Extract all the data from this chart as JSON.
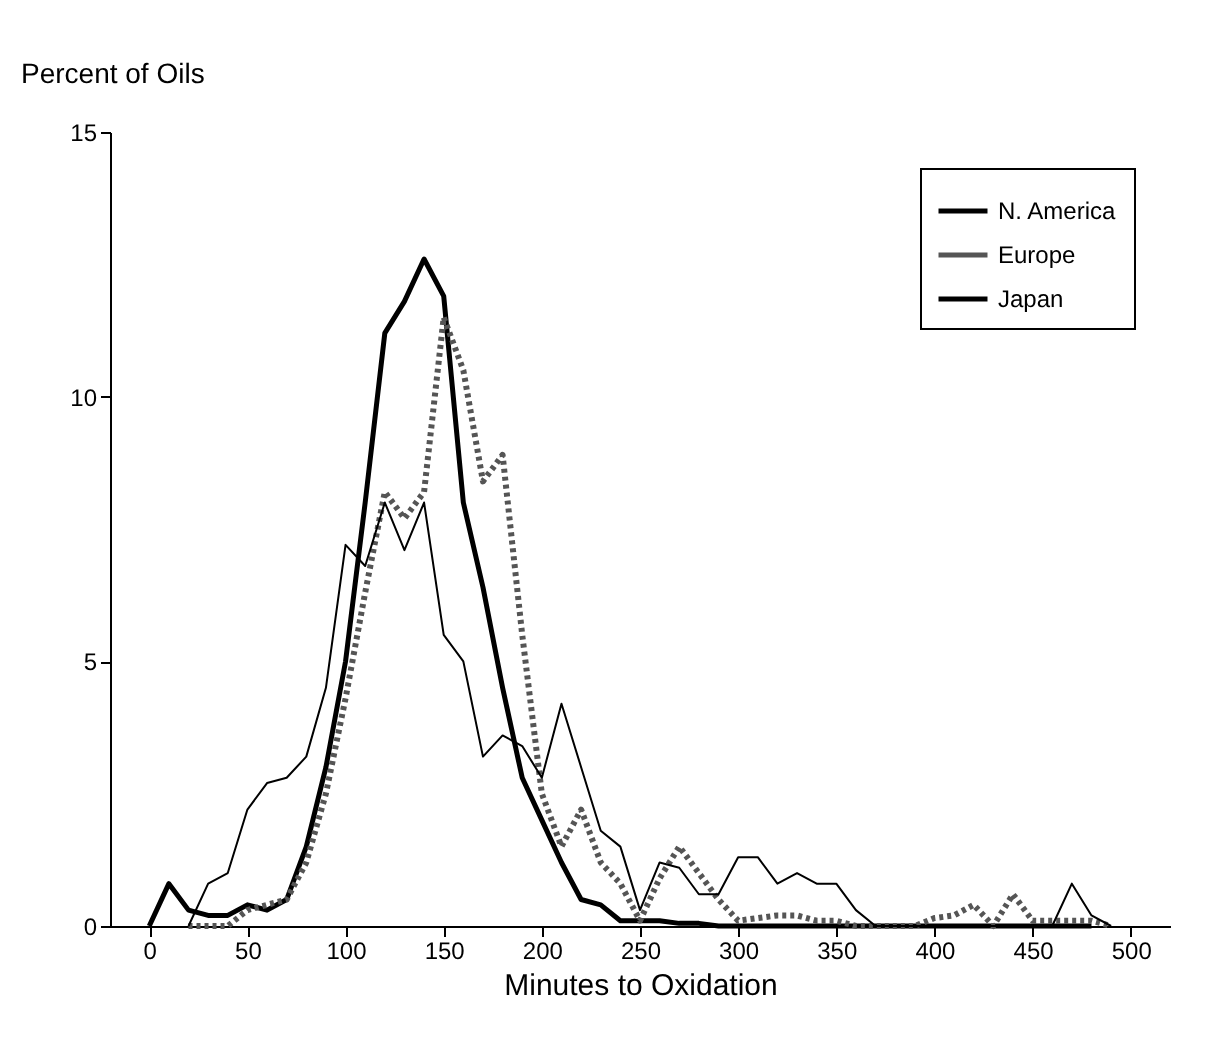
{
  "chart_data": {
    "type": "line",
    "ylabel": "Percent of Oils",
    "xlabel": "Minutes to Oxidation",
    "xlim": [
      -20,
      520
    ],
    "ylim": [
      0,
      15
    ],
    "xticks": [
      0,
      50,
      100,
      150,
      200,
      250,
      300,
      350,
      400,
      450,
      500
    ],
    "yticks": [
      0,
      5,
      10,
      15
    ],
    "grid": false,
    "legend": "top right",
    "marker": "none",
    "series": [
      {
        "name": "N. America",
        "color": "#000000",
        "line_style": "solid",
        "x": [
          0,
          10,
          20,
          30,
          40,
          50,
          60,
          70,
          80,
          90,
          100,
          110,
          120,
          130,
          140,
          150,
          160,
          170,
          180,
          190,
          200,
          210,
          220,
          230,
          240,
          250,
          260,
          270,
          280,
          290,
          300,
          350,
          400,
          450,
          480
        ],
        "values": [
          0,
          0.8,
          0.3,
          0.2,
          0.2,
          0.4,
          0.3,
          0.5,
          1.5,
          3,
          5,
          8,
          11.2,
          11.8,
          12.6,
          11.9,
          8,
          6.4,
          4.5,
          2.8,
          2,
          1.2,
          0.5,
          0.4,
          0.1,
          0.1,
          0.1,
          0.05,
          0.05,
          0,
          0,
          0,
          0,
          0,
          0
        ]
      },
      {
        "name": "Europe",
        "color": "#555555",
        "line_style": "dotted",
        "x": [
          20,
          30,
          40,
          50,
          60,
          70,
          80,
          90,
          100,
          110,
          120,
          130,
          140,
          150,
          160,
          170,
          180,
          190,
          200,
          210,
          220,
          230,
          240,
          250,
          260,
          270,
          280,
          290,
          300,
          310,
          320,
          330,
          340,
          350,
          360,
          370,
          380,
          390,
          400,
          410,
          420,
          430,
          440,
          450,
          460,
          470,
          480,
          490
        ],
        "values": [
          0,
          0,
          0,
          0.3,
          0.4,
          0.5,
          1.2,
          2.5,
          4.3,
          6.3,
          8.2,
          7.7,
          8.2,
          11.5,
          10.5,
          8.4,
          8.9,
          5.5,
          2.5,
          1.5,
          2.2,
          1.2,
          0.8,
          0.1,
          0.9,
          1.5,
          1,
          0.5,
          0.1,
          0.15,
          0.2,
          0.2,
          0.1,
          0.1,
          0,
          0,
          0,
          0,
          0.15,
          0.2,
          0.4,
          0,
          0.6,
          0.1,
          0.1,
          0.1,
          0.1,
          0
        ]
      },
      {
        "name": "Japan",
        "color": "#000000",
        "line_style": "solid",
        "x": [
          20,
          30,
          40,
          50,
          60,
          70,
          80,
          90,
          100,
          110,
          120,
          130,
          140,
          150,
          160,
          170,
          180,
          190,
          200,
          210,
          220,
          230,
          240,
          250,
          260,
          270,
          280,
          290,
          300,
          310,
          320,
          330,
          340,
          350,
          360,
          370,
          380,
          390,
          400,
          410,
          420,
          430,
          440,
          450,
          460,
          470,
          480,
          490
        ],
        "values": [
          0,
          0.8,
          1,
          2.2,
          2.7,
          2.8,
          3.2,
          4.5,
          7.2,
          6.8,
          8,
          7.1,
          8,
          5.5,
          5,
          3.2,
          3.6,
          3.4,
          2.8,
          4.2,
          3,
          1.8,
          1.5,
          0.3,
          1.2,
          1.1,
          0.6,
          0.6,
          1.3,
          1.3,
          0.8,
          1,
          0.8,
          0.8,
          0.3,
          0,
          0,
          0,
          0,
          0,
          0,
          0,
          0,
          0,
          0,
          0.8,
          0.2,
          0
        ]
      }
    ]
  }
}
